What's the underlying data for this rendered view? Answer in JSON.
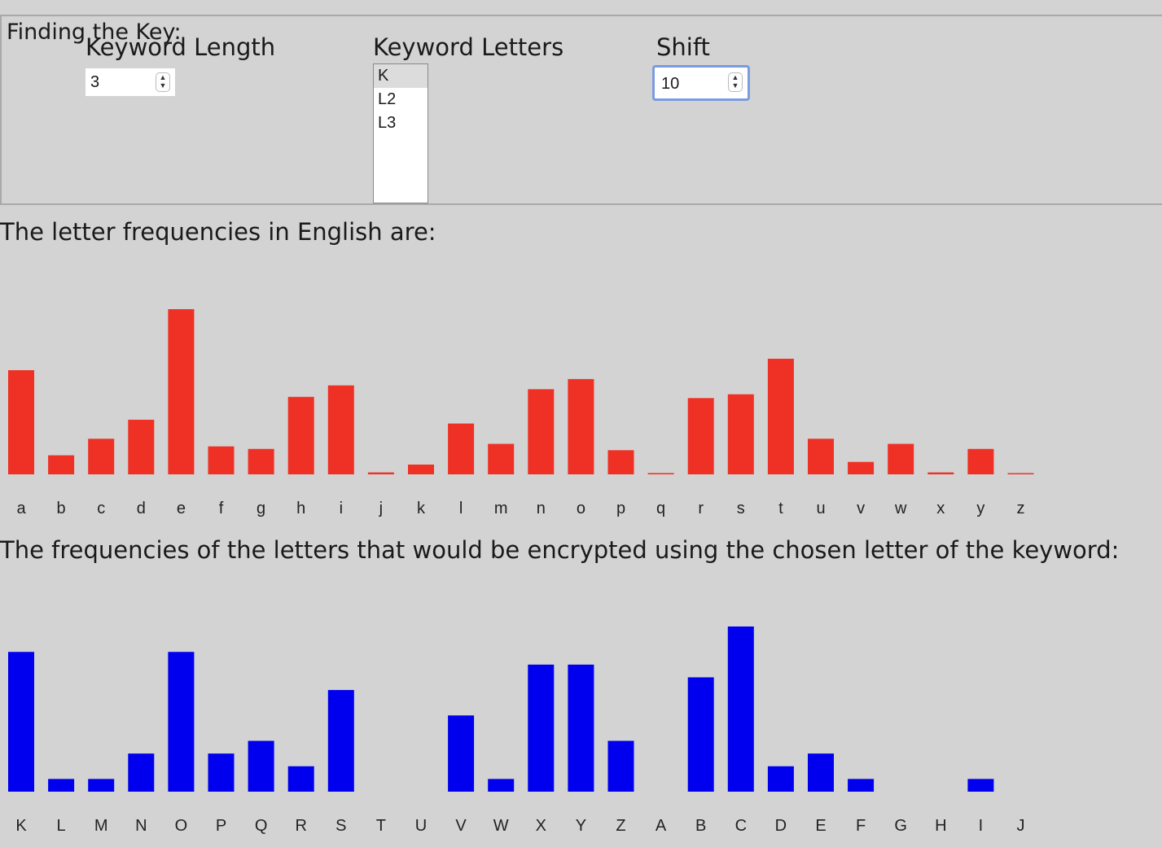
{
  "panel": {
    "legend": "Finding the Key:",
    "keyword_length_label": "Keyword Length",
    "keyword_length_value": "3",
    "keyword_letters_label": "Keyword Letters",
    "keyword_letters_options": [
      "K",
      "L2",
      "L3"
    ],
    "keyword_letters_selected": "K",
    "shift_label": "Shift",
    "shift_value": "10"
  },
  "english_caption": "The letter frequencies in English are:",
  "encrypted_caption": "The frequencies of the letters that would be encrypted using the chosen letter of the keyword:",
  "colors": {
    "english_bars": "#ee3124",
    "encrypted_bars": "#0000ee"
  },
  "chart_data": [
    {
      "type": "bar",
      "categories": [
        "a",
        "b",
        "c",
        "d",
        "e",
        "f",
        "g",
        "h",
        "i",
        "j",
        "k",
        "l",
        "m",
        "n",
        "o",
        "p",
        "q",
        "r",
        "s",
        "t",
        "u",
        "v",
        "w",
        "x",
        "y",
        "z"
      ],
      "values": [
        8.2,
        1.5,
        2.8,
        4.3,
        13.0,
        2.2,
        2.0,
        6.1,
        7.0,
        0.15,
        0.77,
        4.0,
        2.4,
        6.7,
        7.5,
        1.9,
        0.1,
        6.0,
        6.3,
        9.1,
        2.8,
        0.98,
        2.4,
        0.15,
        2.0,
        0.07
      ],
      "ylim": [
        0,
        13.0
      ]
    },
    {
      "type": "bar",
      "categories": [
        "K",
        "L",
        "M",
        "N",
        "O",
        "P",
        "Q",
        "R",
        "S",
        "T",
        "U",
        "V",
        "W",
        "X",
        "Y",
        "Z",
        "A",
        "B",
        "C",
        "D",
        "E",
        "F",
        "G",
        "H",
        "I",
        "J"
      ],
      "values": [
        11,
        1,
        1,
        3,
        11,
        3,
        4,
        2,
        8,
        0,
        0,
        6,
        1,
        10,
        10,
        4,
        0,
        9,
        13,
        2,
        3,
        1,
        0,
        0,
        1,
        0
      ],
      "ylim": [
        0,
        13
      ]
    }
  ]
}
